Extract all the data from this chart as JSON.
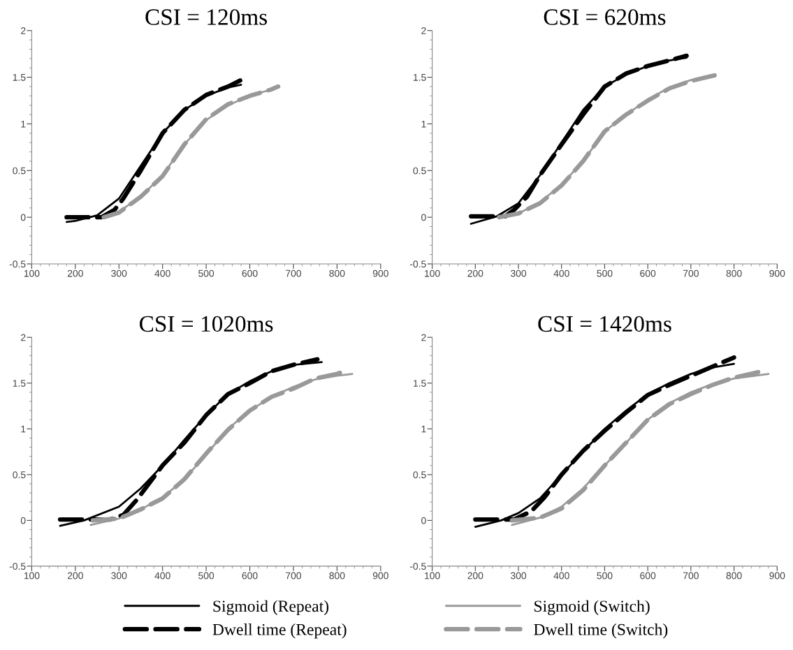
{
  "chart_data": [
    {
      "type": "line",
      "title": "CSI = 120ms",
      "xlim": [
        100,
        900
      ],
      "ylim": [
        -0.5,
        2
      ],
      "xticks": [
        100,
        200,
        300,
        400,
        500,
        600,
        700,
        800,
        900
      ],
      "yticks": [
        -0.5,
        0,
        0.5,
        1,
        1.5,
        2
      ],
      "grid": false,
      "legend": "bottom",
      "series": [
        {
          "name": "Sigmoid (Repeat)",
          "color": "#000000",
          "line_style": "solid",
          "x": [
            180,
            200,
            250,
            300,
            350,
            400,
            450,
            500,
            550,
            580
          ],
          "values": [
            -0.05,
            -0.04,
            0.02,
            0.2,
            0.55,
            0.9,
            1.15,
            1.3,
            1.39,
            1.42
          ]
        },
        {
          "name": "Dwell time (Repeat)",
          "color": "#000000",
          "line_style": "dashed",
          "x": [
            180,
            260,
            290,
            310,
            350,
            400,
            450,
            500,
            550,
            580
          ],
          "values": [
            0,
            0,
            0.08,
            0.2,
            0.5,
            0.9,
            1.15,
            1.31,
            1.4,
            1.47
          ]
        },
        {
          "name": "Sigmoid (Switch)",
          "color": "#999999",
          "line_style": "solid",
          "x": [
            265,
            300,
            350,
            400,
            450,
            500,
            550,
            600,
            650,
            665
          ],
          "values": [
            0,
            0.06,
            0.22,
            0.45,
            0.78,
            1.04,
            1.2,
            1.3,
            1.37,
            1.4
          ]
        },
        {
          "name": "Dwell time (Switch)",
          "color": "#999999",
          "line_style": "dashed",
          "x": [
            265,
            300,
            350,
            400,
            450,
            500,
            550,
            600,
            650,
            665
          ],
          "values": [
            0,
            0.05,
            0.22,
            0.44,
            0.78,
            1.05,
            1.21,
            1.3,
            1.37,
            1.4
          ]
        }
      ]
    },
    {
      "type": "line",
      "title": "CSI = 620ms",
      "xlim": [
        100,
        900
      ],
      "ylim": [
        -0.5,
        2
      ],
      "xticks": [
        100,
        200,
        300,
        400,
        500,
        600,
        700,
        800,
        900
      ],
      "yticks": [
        -0.5,
        0,
        0.5,
        1,
        1.5,
        2
      ],
      "grid": false,
      "legend": "bottom",
      "series": [
        {
          "name": "Sigmoid (Repeat)",
          "color": "#000000",
          "line_style": "solid",
          "x": [
            190,
            250,
            300,
            350,
            400,
            450,
            500,
            550,
            600,
            650,
            690
          ],
          "values": [
            -0.07,
            0.01,
            0.15,
            0.45,
            0.8,
            1.15,
            1.4,
            1.53,
            1.62,
            1.68,
            1.71
          ]
        },
        {
          "name": "Dwell time (Repeat)",
          "color": "#000000",
          "line_style": "dashed",
          "x": [
            190,
            270,
            290,
            320,
            350,
            400,
            450,
            500,
            550,
            600,
            650,
            690
          ],
          "values": [
            0.01,
            0.01,
            0.08,
            0.22,
            0.45,
            0.78,
            1.1,
            1.4,
            1.54,
            1.62,
            1.68,
            1.73
          ]
        },
        {
          "name": "Sigmoid (Switch)",
          "color": "#999999",
          "line_style": "solid",
          "x": [
            255,
            300,
            350,
            400,
            450,
            500,
            550,
            600,
            650,
            700,
            755
          ],
          "values": [
            -0.01,
            0.04,
            0.16,
            0.35,
            0.6,
            0.92,
            1.1,
            1.26,
            1.39,
            1.47,
            1.51
          ]
        },
        {
          "name": "Dwell time (Switch)",
          "color": "#999999",
          "line_style": "dashed",
          "x": [
            255,
            300,
            350,
            400,
            450,
            500,
            550,
            600,
            650,
            700,
            755
          ],
          "values": [
            0,
            0.04,
            0.15,
            0.34,
            0.6,
            0.92,
            1.1,
            1.25,
            1.38,
            1.46,
            1.52
          ]
        }
      ]
    },
    {
      "type": "line",
      "title": "CSI = 1020ms",
      "xlim": [
        100,
        900
      ],
      "ylim": [
        -0.5,
        2
      ],
      "xticks": [
        100,
        200,
        300,
        400,
        500,
        600,
        700,
        800,
        900
      ],
      "yticks": [
        -0.5,
        0,
        0.5,
        1,
        1.5,
        2
      ],
      "grid": false,
      "legend": "bottom",
      "series": [
        {
          "name": "Sigmoid (Repeat)",
          "color": "#000000",
          "line_style": "solid",
          "x": [
            165,
            220,
            300,
            350,
            400,
            450,
            500,
            550,
            600,
            650,
            700,
            765
          ],
          "values": [
            -0.06,
            0,
            0.15,
            0.35,
            0.6,
            0.88,
            1.15,
            1.38,
            1.52,
            1.63,
            1.7,
            1.73
          ]
        },
        {
          "name": "Dwell time (Repeat)",
          "color": "#000000",
          "line_style": "dashed",
          "x": [
            165,
            280,
            310,
            340,
            400,
            450,
            500,
            550,
            600,
            650,
            700,
            755
          ],
          "values": [
            0.01,
            0.01,
            0.06,
            0.22,
            0.6,
            0.85,
            1.15,
            1.38,
            1.5,
            1.63,
            1.7,
            1.76
          ]
        },
        {
          "name": "Sigmoid (Switch)",
          "color": "#999999",
          "line_style": "solid",
          "x": [
            235,
            300,
            350,
            400,
            450,
            500,
            550,
            600,
            650,
            700,
            750,
            800,
            835
          ],
          "values": [
            -0.05,
            0.02,
            0.12,
            0.25,
            0.45,
            0.72,
            1.0,
            1.2,
            1.35,
            1.46,
            1.54,
            1.58,
            1.6
          ]
        },
        {
          "name": "Dwell time (Switch)",
          "color": "#999999",
          "line_style": "dashed",
          "x": [
            240,
            300,
            350,
            400,
            450,
            500,
            550,
            600,
            650,
            700,
            750,
            800,
            825
          ],
          "values": [
            0,
            0.02,
            0.12,
            0.24,
            0.45,
            0.73,
            0.99,
            1.2,
            1.35,
            1.44,
            1.55,
            1.6,
            1.65
          ]
        }
      ]
    },
    {
      "type": "line",
      "title": "CSI = 1420ms",
      "xlim": [
        100,
        900
      ],
      "ylim": [
        -0.5,
        2
      ],
      "xticks": [
        100,
        200,
        300,
        400,
        500,
        600,
        700,
        800,
        900
      ],
      "yticks": [
        -0.5,
        0,
        0.5,
        1,
        1.5,
        2
      ],
      "grid": false,
      "legend": "bottom",
      "series": [
        {
          "name": "Sigmoid (Repeat)",
          "color": "#000000",
          "line_style": "solid",
          "x": [
            200,
            260,
            300,
            350,
            400,
            450,
            500,
            550,
            600,
            650,
            700,
            750,
            800
          ],
          "values": [
            -0.07,
            0,
            0.08,
            0.24,
            0.5,
            0.75,
            1.0,
            1.2,
            1.38,
            1.5,
            1.6,
            1.67,
            1.71
          ]
        },
        {
          "name": "Dwell time (Repeat)",
          "color": "#000000",
          "line_style": "dashed",
          "x": [
            200,
            290,
            330,
            360,
            400,
            450,
            500,
            550,
            600,
            650,
            700,
            750,
            800
          ],
          "values": [
            0.01,
            0.01,
            0.1,
            0.25,
            0.5,
            0.76,
            0.98,
            1.18,
            1.37,
            1.48,
            1.58,
            1.68,
            1.78
          ]
        },
        {
          "name": "Sigmoid (Switch)",
          "color": "#999999",
          "line_style": "solid",
          "x": [
            285,
            350,
            400,
            450,
            500,
            550,
            600,
            650,
            700,
            750,
            800,
            880
          ],
          "values": [
            -0.05,
            0.03,
            0.15,
            0.35,
            0.6,
            0.85,
            1.1,
            1.28,
            1.4,
            1.49,
            1.55,
            1.6
          ]
        },
        {
          "name": "Dwell time (Switch)",
          "color": "#999999",
          "line_style": "dashed",
          "x": [
            285,
            350,
            400,
            450,
            500,
            550,
            600,
            650,
            700,
            750,
            800,
            865
          ],
          "values": [
            0,
            0.03,
            0.13,
            0.33,
            0.6,
            0.85,
            1.1,
            1.27,
            1.38,
            1.48,
            1.56,
            1.63
          ]
        }
      ]
    }
  ]
}
